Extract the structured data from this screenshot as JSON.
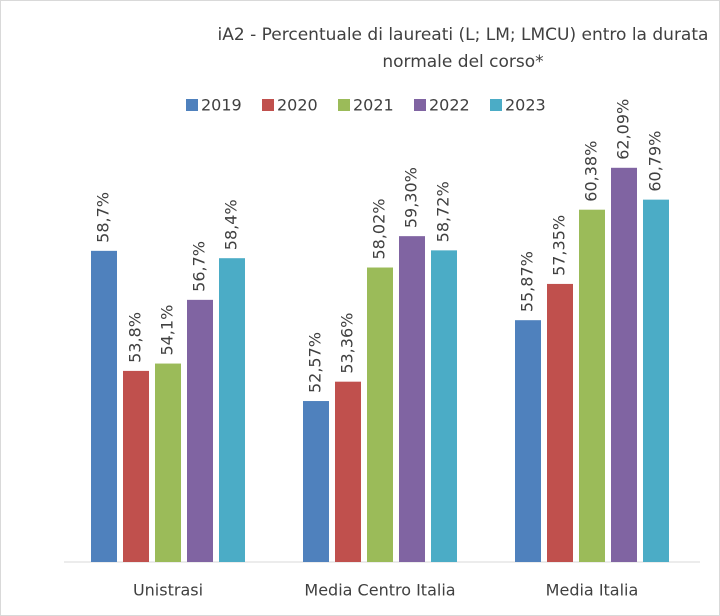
{
  "chart_data": {
    "type": "bar",
    "title": "iA2 - Percentuale di laureati (L; LM; LMCU) entro la durata normale del corso*",
    "categories": [
      "Unistrasi",
      "Media Centro Italia",
      "Media Italia"
    ],
    "series": [
      {
        "name": "2019",
        "color": "#4f81bd",
        "values": [
          58.7,
          52.57,
          55.87
        ],
        "value_labels": [
          "58,7%",
          "52,57%",
          "55,87%"
        ]
      },
      {
        "name": "2020",
        "color": "#c0504d",
        "values": [
          53.8,
          53.36,
          57.35
        ],
        "value_labels": [
          "53,8%",
          "53,36%",
          "57,35%"
        ]
      },
      {
        "name": "2021",
        "color": "#9bbb59",
        "values": [
          54.1,
          58.02,
          60.38
        ],
        "value_labels": [
          "54,1%",
          "58,02%",
          "60,38%"
        ]
      },
      {
        "name": "2022",
        "color": "#8064a2",
        "values": [
          56.7,
          59.3,
          62.09
        ],
        "value_labels": [
          "56,7%",
          "59,30%",
          "62,09%"
        ]
      },
      {
        "name": "2023",
        "color": "#4bacc6",
        "values": [
          58.4,
          58.72,
          60.79
        ],
        "value_labels": [
          "58,4%",
          "58,72%",
          "60,79%"
        ]
      }
    ],
    "ylim": [
      46,
      64
    ]
  }
}
